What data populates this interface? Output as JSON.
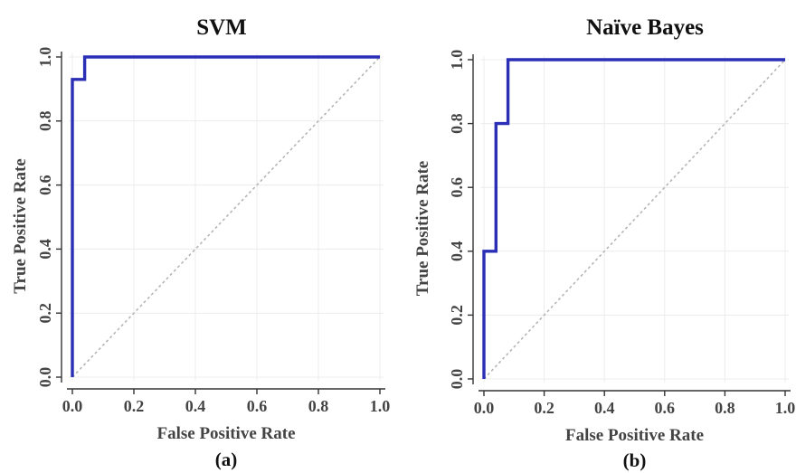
{
  "chart_data": [
    {
      "type": "line",
      "title": "SVM",
      "caption": "(a)",
      "xlabel": "False Positive Rate",
      "ylabel": "True Positive Rate",
      "xlim": [
        0,
        1
      ],
      "ylim": [
        0,
        1
      ],
      "xticks": [
        "0.0",
        "0.2",
        "0.4",
        "0.6",
        "0.8",
        "1.0"
      ],
      "yticks": [
        "0.0",
        "0.2",
        "0.4",
        "0.6",
        "0.8",
        "1.0"
      ],
      "grid": true,
      "series": [
        {
          "color": "#2a2fb5",
          "x": [
            0.0,
            0.0,
            0.04,
            0.04,
            1.0
          ],
          "y": [
            0.0,
            0.93,
            0.93,
            1.0,
            1.0
          ]
        }
      ],
      "reference_line": {
        "color": "#b5b5b5",
        "x": [
          0,
          1
        ],
        "y": [
          0,
          1
        ]
      }
    },
    {
      "type": "line",
      "title": "Naïve Bayes",
      "caption": "(b)",
      "xlabel": "False Positive Rate",
      "ylabel": "True Positive Rate",
      "xlim": [
        0,
        1
      ],
      "ylim": [
        0,
        1
      ],
      "xticks": [
        "0.0",
        "0.2",
        "0.4",
        "0.6",
        "0.8",
        "1.0"
      ],
      "yticks": [
        "0.0",
        "0.2",
        "0.4",
        "0.6",
        "0.8",
        "1.0"
      ],
      "grid": true,
      "series": [
        {
          "color": "#2a2fb5",
          "x": [
            0.0,
            0.0,
            0.04,
            0.04,
            0.08,
            0.08,
            1.0
          ],
          "y": [
            0.0,
            0.4,
            0.4,
            0.8,
            0.8,
            1.0,
            1.0
          ]
        }
      ],
      "reference_line": {
        "color": "#b5b5b5",
        "x": [
          0,
          1
        ],
        "y": [
          0,
          1
        ]
      }
    }
  ]
}
